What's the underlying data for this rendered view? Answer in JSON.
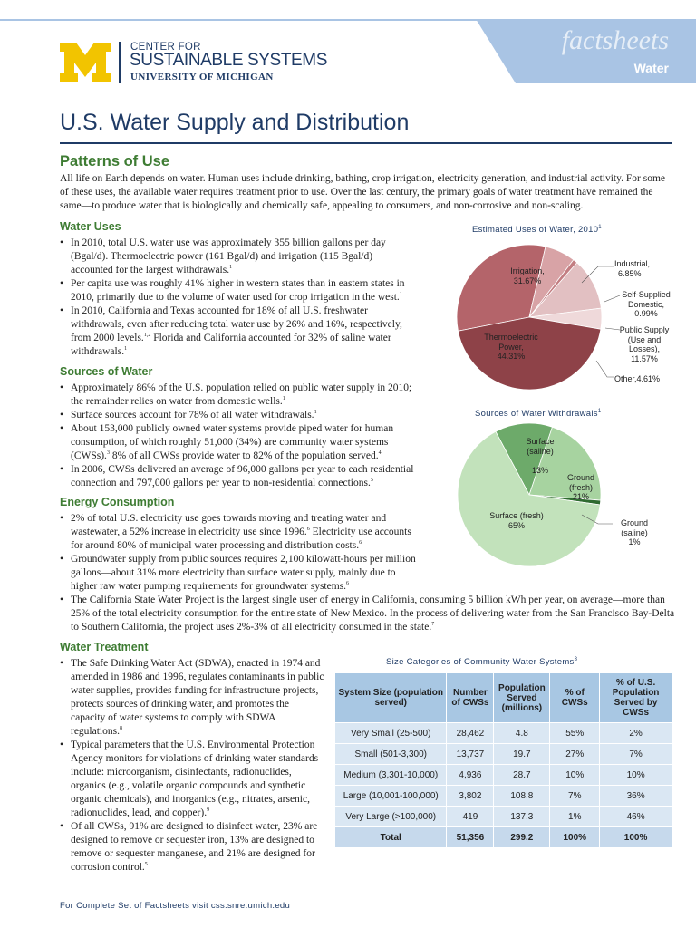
{
  "header": {
    "org_line1": "CENTER FOR",
    "org_line2": "SUSTAINABLE SYSTEMS",
    "org_line3": "UNIVERSITY OF MICHIGAN",
    "banner_word": "factsheets",
    "banner_sub": "Water",
    "colors": {
      "maize": "#f2c400",
      "blue": "#1f3b66",
      "banner": "#a9c4e4"
    }
  },
  "title": "U.S. Water Supply and Distribution",
  "patterns": {
    "heading": "Patterns of Use",
    "intro": "All life on Earth depends on water. Human uses include drinking, bathing, crop irrigation, electricity generation, and industrial activity.  For some of these uses, the available water requires treatment prior to use. Over the last century, the primary goals of water treatment have remained the same—to produce water that is biologically and chemically safe, appealing to consumers, and non-corrosive and non-scaling."
  },
  "water_uses": {
    "heading": "Water Uses",
    "bullets": [
      {
        "text": "In 2010, total U.S. water use was approximately 355 billion gallons per day (Bgal/d). Thermoelectric power (161 Bgal/d) and irrigation (115 Bgal/d) accounted for the largest withdrawals.",
        "sup": "1"
      },
      {
        "text": "Per capita use was roughly 41% higher in western states than in eastern states in 2010, primarily due to the volume of water used for crop irrigation in the west.",
        "sup": "1"
      },
      {
        "text": "In 2010, California and Texas accounted for 18% of all U.S. freshwater withdrawals, even after reducing total water use by 26% and 16%, respectively, from 2000 levels.",
        "sup": "1,2",
        "text2": " Florida and California accounted for 32% of saline water withdrawals.",
        "sup2": "1"
      }
    ]
  },
  "sources": {
    "heading": "Sources of Water",
    "bullets": [
      {
        "text": "Approximately 86% of the U.S. population relied on public water supply in 2010; the remainder relies on water from domestic wells.",
        "sup": "1"
      },
      {
        "text": "Surface sources account for 78% of all water withdrawals.",
        "sup": "1"
      },
      {
        "text": "About 153,000 publicly owned water systems provide piped water for human consumption, of which roughly 51,000 (34%) are community water systems (CWSs).",
        "sup": "3",
        "text2": "  8% of all CWSs provide water to 82% of the population served.",
        "sup2": "4"
      },
      {
        "text": "In 2006, CWSs delivered an average of 96,000 gallons per year to each residential connection and 797,000 gallons per year to non-residential connections.",
        "sup": "5"
      }
    ]
  },
  "energy": {
    "heading": "Energy Consumption",
    "bullets": [
      {
        "text": "2% of total U.S. electricity use goes towards moving and treating water and wastewater, a 52% increase in electricity use since 1996.",
        "sup": "6",
        "text2": " Electricity use accounts for around 80% of municipal water processing and distribution costs.",
        "sup2": "6"
      },
      {
        "text": "Groundwater supply from public sources requires 2,100 kilowatt-hours per million gallons—about 31% more electricity than surface water supply, mainly due to higher raw water pumping requirements for groundwater systems.",
        "sup": "6"
      },
      {
        "text": "The California State Water Project is the largest single user of energy in California, consuming 5 billion kWh per year, on average—more than 25% of the total electricity consumption for the entire state of New Mexico. In the process of delivering water from the San Francisco Bay-Delta to Southern California, the project uses 2%-3% of all electricity consumed in the state.",
        "sup": "7"
      }
    ]
  },
  "treatment": {
    "heading": "Water Treatment",
    "bullets": [
      {
        "text": "The Safe Drinking Water Act (SDWA), enacted in 1974 and amended in 1986 and 1996, regulates contaminants in public water supplies, provides funding for infrastructure projects, protects sources of drinking water, and promotes the capacity of water systems to comply with SDWA regulations.",
        "sup": "8"
      },
      {
        "text": "Typical parameters that the U.S. Environmental Protection Agency monitors for violations of drinking water standards include: microorganism, disinfectants, radionuclides, organics (e.g., volatile organic compounds and synthetic organic chemicals), and inorganics (e.g., nitrates, arsenic, radionuclides, lead, and copper).",
        "sup": "9"
      },
      {
        "text": "Of all CWSs, 91% are designed to disinfect water, 23% are designed to remove or sequester iron, 13% are designed to remove or sequester manganese, and 21% are designed for corrosion control.",
        "sup": "5"
      }
    ]
  },
  "chart_data": [
    {
      "type": "pie",
      "title": "Estimated Uses of Water, 2010",
      "title_sup": "1",
      "slices": [
        {
          "label": "Irrigation,",
          "pct_label": "31.67%",
          "value": 31.67,
          "color": "#b4646a"
        },
        {
          "label": "Industrial,",
          "pct_label": "6.85%",
          "value": 6.85,
          "color": "#d8a3a6"
        },
        {
          "label": "Self-Supplied Domestic,",
          "pct_label": "0.99%",
          "value": 0.99,
          "color": "#c37e82"
        },
        {
          "label": "Public Supply (Use and Losses),",
          "pct_label": "11.57%",
          "value": 11.57,
          "color": "#e2c0c2"
        },
        {
          "label": "Other,",
          "pct_label": "4.61%",
          "value": 4.61,
          "color": "#efd9da"
        },
        {
          "label": "Thermoelectric Power,",
          "pct_label": "44.31%",
          "value": 44.31,
          "color": "#8e4248"
        }
      ]
    },
    {
      "type": "pie",
      "title": "Sources of Water Withdrawals",
      "title_sup": "1",
      "slices": [
        {
          "label": "Surface (saline)",
          "pct_label": "13%",
          "value": 13,
          "color": "#6daa6a"
        },
        {
          "label": "Ground (fresh)",
          "pct_label": "21%",
          "value": 21,
          "color": "#a7d3a0"
        },
        {
          "label": "Ground (saline)",
          "pct_label": "1%",
          "value": 1,
          "color": "#2f6b30"
        },
        {
          "label": "Surface (fresh)",
          "pct_label": "65%",
          "value": 65,
          "color": "#c2e2bb"
        }
      ]
    },
    {
      "type": "table",
      "title": "Size Categories of Community Water Systems",
      "title_sup": "3",
      "columns": [
        "System Size (population served)",
        "Number of CWSs",
        "Population Served (millions)",
        "% of CWSs",
        "% of U.S. Population Served by CWSs"
      ],
      "rows": [
        [
          "Very Small (25-500)",
          "28,462",
          "4.8",
          "55%",
          "2%"
        ],
        [
          "Small (501-3,300)",
          "13,737",
          "19.7",
          "27%",
          "7%"
        ],
        [
          "Medium (3,301-10,000)",
          "4,936",
          "28.7",
          "10%",
          "10%"
        ],
        [
          "Large (10,001-100,000)",
          "3,802",
          "108.8",
          "7%",
          "36%"
        ],
        [
          "Very Large (>100,000)",
          "419",
          "137.3",
          "1%",
          "46%"
        ]
      ],
      "total": [
        "Total",
        "51,356",
        "299.2",
        "100%",
        "100%"
      ]
    }
  ],
  "footer": "For Complete Set of Factsheets visit css.snre.umich.edu"
}
